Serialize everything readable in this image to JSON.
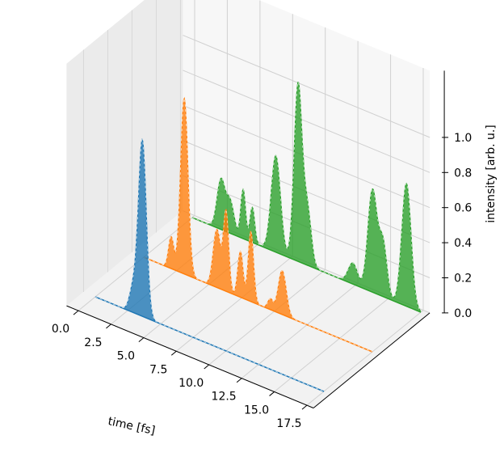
{
  "chart_data": {
    "type": "area",
    "projection": "3d-waterfall",
    "title": "",
    "xlabel": "time [fs]",
    "zlabel": "intensity [arb. u.]",
    "xlim": [
      0,
      17.5
    ],
    "zlim": [
      0,
      1.0
    ],
    "x_ticks": [
      "0.0",
      "2.5",
      "5.0",
      "7.5",
      "10.0",
      "12.5",
      "15.0",
      "17.5"
    ],
    "z_ticks": [
      "0.0",
      "0.2",
      "0.4",
      "0.6",
      "0.8",
      "1.0"
    ],
    "grid": true,
    "series": [
      {
        "color": "#1f77b4",
        "peaks": [
          {
            "t": 2.9,
            "amplitude": 0.14,
            "width": 0.28
          },
          {
            "t": 3.6,
            "amplitude": 1.0,
            "width": 0.3
          }
        ]
      },
      {
        "color": "#ff7f0e",
        "peaks": [
          {
            "t": 2.1,
            "amplitude": 0.18,
            "width": 0.2
          },
          {
            "t": 3.1,
            "amplitude": 1.0,
            "width": 0.28
          },
          {
            "t": 5.6,
            "amplitude": 0.33,
            "width": 0.28
          },
          {
            "t": 6.3,
            "amplitude": 0.45,
            "width": 0.2
          },
          {
            "t": 7.4,
            "amplitude": 0.26,
            "width": 0.2
          },
          {
            "t": 8.2,
            "amplitude": 0.4,
            "width": 0.2
          },
          {
            "t": 9.7,
            "amplitude": 0.06,
            "width": 0.2
          },
          {
            "t": 10.6,
            "amplitude": 0.25,
            "width": 0.3
          }
        ]
      },
      {
        "color": "#2ca02c",
        "peaks": [
          {
            "t": 2.2,
            "amplitude": 0.28,
            "width": 0.3
          },
          {
            "t": 2.9,
            "amplitude": 0.18,
            "width": 0.3
          },
          {
            "t": 3.9,
            "amplitude": 0.28,
            "width": 0.18
          },
          {
            "t": 4.6,
            "amplitude": 0.2,
            "width": 0.18
          },
          {
            "t": 6.4,
            "amplitude": 0.55,
            "width": 0.35
          },
          {
            "t": 8.1,
            "amplitude": 1.0,
            "width": 0.3
          },
          {
            "t": 8.8,
            "amplitude": 0.32,
            "width": 0.3
          },
          {
            "t": 12.3,
            "amplitude": 0.12,
            "width": 0.35
          },
          {
            "t": 13.8,
            "amplitude": 0.58,
            "width": 0.35
          },
          {
            "t": 14.6,
            "amplitude": 0.3,
            "width": 0.3
          },
          {
            "t": 16.4,
            "amplitude": 0.7,
            "width": 0.35
          }
        ]
      }
    ]
  }
}
